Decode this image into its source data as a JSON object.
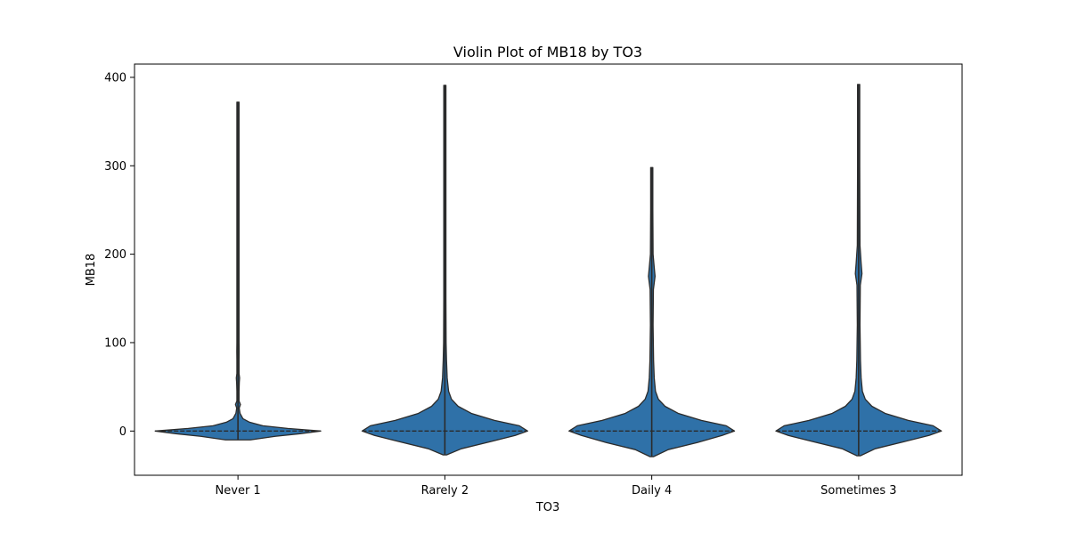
{
  "chart_data": {
    "type": "violin",
    "title": "Violin Plot of MB18 by TO3",
    "xlabel": "TO3",
    "ylabel": "MB18",
    "categories": [
      "Never 1",
      "Rarely 2",
      "Daily 4",
      "Sometimes 3"
    ],
    "ylim": [
      -50,
      415
    ],
    "yticks": [
      0,
      100,
      200,
      300,
      400
    ],
    "grid": false,
    "colors": {
      "fill": "#2f71a8",
      "edge": "#2b2b2b"
    },
    "violins": [
      {
        "category": "Never 1",
        "min": -10,
        "max": 372,
        "median": 0,
        "q1": 0,
        "q3": 0,
        "profile": [
          [
            -10,
            0.15
          ],
          [
            -6,
            0.45
          ],
          [
            -3,
            0.75
          ],
          [
            0,
            1.0
          ],
          [
            3,
            0.6
          ],
          [
            6,
            0.3
          ],
          [
            10,
            0.14
          ],
          [
            14,
            0.06
          ],
          [
            20,
            0.025
          ],
          [
            26,
            0.015
          ],
          [
            30,
            0.03
          ],
          [
            34,
            0.012
          ],
          [
            45,
            0.007
          ],
          [
            55,
            0.016
          ],
          [
            60,
            0.02
          ],
          [
            65,
            0.012
          ],
          [
            80,
            0.007
          ],
          [
            90,
            0.014
          ],
          [
            100,
            0.007
          ],
          [
            115,
            0.007
          ],
          [
            120,
            0.012
          ],
          [
            130,
            0.006
          ],
          [
            175,
            0.006
          ],
          [
            180,
            0.011
          ],
          [
            185,
            0.006
          ],
          [
            250,
            0.006
          ],
          [
            372,
            0.004
          ]
        ]
      },
      {
        "category": "Rarely 2",
        "min": -27,
        "max": 391,
        "median": 0,
        "q1": 0,
        "q3": 0,
        "profile": [
          [
            -27,
            0.02
          ],
          [
            -20,
            0.2
          ],
          [
            -12,
            0.55
          ],
          [
            -5,
            0.85
          ],
          [
            0,
            1.0
          ],
          [
            6,
            0.9
          ],
          [
            12,
            0.6
          ],
          [
            20,
            0.32
          ],
          [
            28,
            0.16
          ],
          [
            36,
            0.08
          ],
          [
            45,
            0.045
          ],
          [
            60,
            0.028
          ],
          [
            80,
            0.02
          ],
          [
            100,
            0.015
          ],
          [
            150,
            0.012
          ],
          [
            200,
            0.011
          ],
          [
            300,
            0.01
          ],
          [
            391,
            0.007
          ]
        ]
      },
      {
        "category": "Daily 4",
        "min": -29,
        "max": 298,
        "median": 0,
        "q1": 0,
        "q3": 0,
        "profile": [
          [
            -29,
            0.02
          ],
          [
            -21,
            0.2
          ],
          [
            -13,
            0.55
          ],
          [
            -5,
            0.85
          ],
          [
            0,
            1.0
          ],
          [
            6,
            0.9
          ],
          [
            12,
            0.6
          ],
          [
            20,
            0.32
          ],
          [
            28,
            0.16
          ],
          [
            36,
            0.08
          ],
          [
            45,
            0.045
          ],
          [
            60,
            0.03
          ],
          [
            80,
            0.022
          ],
          [
            120,
            0.016
          ],
          [
            160,
            0.02
          ],
          [
            175,
            0.04
          ],
          [
            185,
            0.03
          ],
          [
            200,
            0.016
          ],
          [
            250,
            0.012
          ],
          [
            298,
            0.008
          ]
        ]
      },
      {
        "category": "Sometimes 3",
        "min": -28,
        "max": 392,
        "median": 0,
        "q1": 0,
        "q3": 0,
        "profile": [
          [
            -28,
            0.02
          ],
          [
            -20,
            0.2
          ],
          [
            -12,
            0.55
          ],
          [
            -5,
            0.85
          ],
          [
            0,
            1.0
          ],
          [
            6,
            0.9
          ],
          [
            12,
            0.6
          ],
          [
            20,
            0.32
          ],
          [
            28,
            0.16
          ],
          [
            36,
            0.08
          ],
          [
            45,
            0.045
          ],
          [
            60,
            0.03
          ],
          [
            80,
            0.022
          ],
          [
            120,
            0.016
          ],
          [
            165,
            0.02
          ],
          [
            178,
            0.04
          ],
          [
            190,
            0.03
          ],
          [
            210,
            0.016
          ],
          [
            300,
            0.012
          ],
          [
            392,
            0.008
          ]
        ]
      }
    ]
  }
}
